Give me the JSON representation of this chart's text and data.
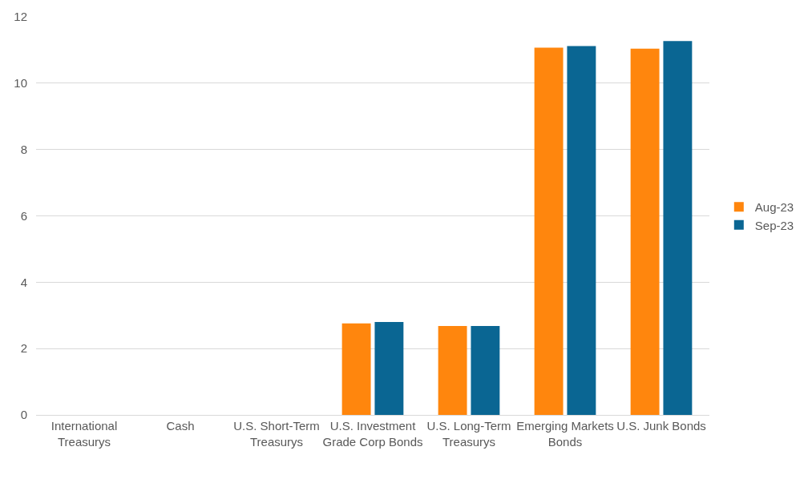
{
  "chart_data": {
    "type": "bar",
    "categories": [
      "International Treasurys",
      "Cash",
      "U.S. Short-Term Treasurys",
      "U.S. Investment Grade Corp Bonds",
      "U.S. Long-Term Treasurys",
      "Emerging Markets Bonds",
      "U.S. Junk Bonds"
    ],
    "series": [
      {
        "name": "Aug-23",
        "color": "#ff860d",
        "values": [
          0,
          0,
          0,
          2.76,
          2.68,
          11.07,
          11.04
        ]
      },
      {
        "name": "Sep-23",
        "color": "#0a6693",
        "values": [
          0,
          0,
          0,
          2.8,
          2.68,
          11.12,
          11.27
        ]
      }
    ],
    "ylim": [
      0,
      12
    ],
    "yticks": [
      0,
      2,
      4,
      6,
      8,
      10,
      12
    ],
    "grid": "y",
    "legend": "right"
  }
}
